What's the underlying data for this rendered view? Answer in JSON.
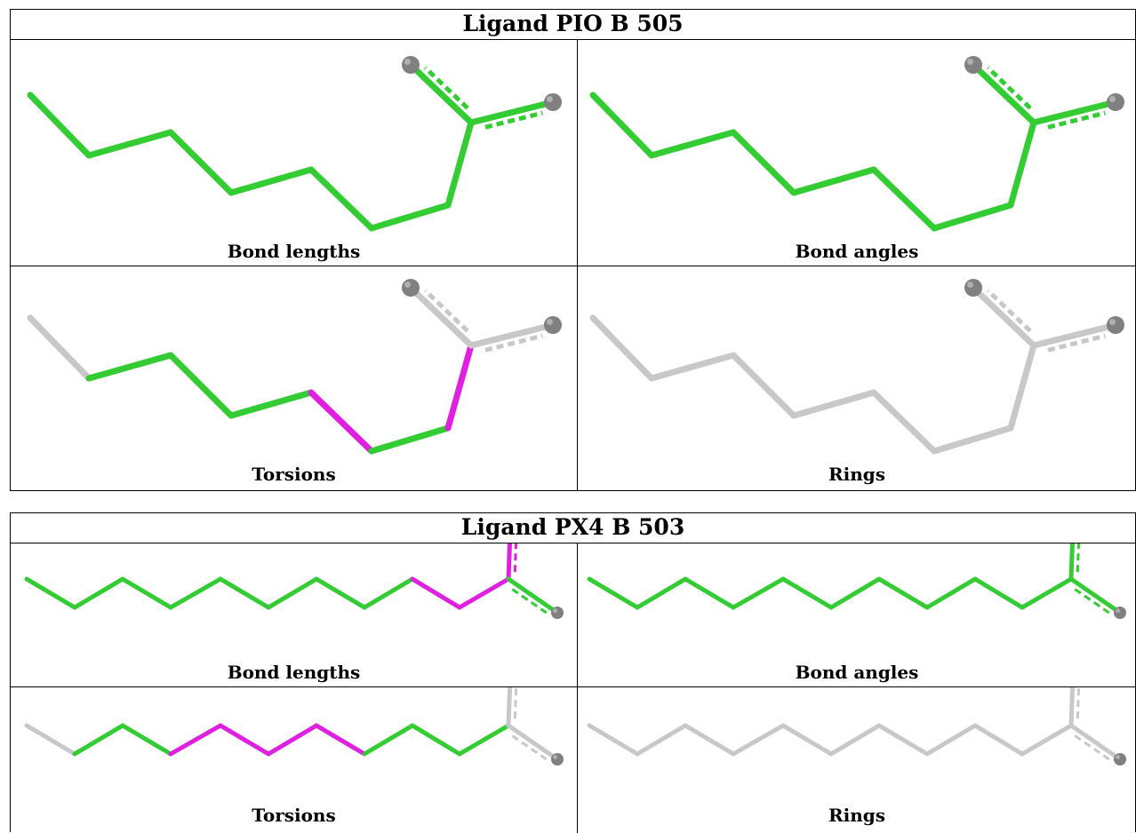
{
  "ligands": [
    {
      "title": "Ligand PIO B 505",
      "panels": [
        {
          "caption": "Bond lengths",
          "chain_colors": [
            "#33cc33",
            "#33cc33",
            "#33cc33",
            "#33cc33",
            "#33cc33",
            "#33cc33",
            "#33cc33",
            "#33cc33"
          ],
          "head_colors": [
            "#33cc33",
            "#33cc33"
          ]
        },
        {
          "caption": "Bond angles",
          "chain_colors": [
            "#33cc33",
            "#33cc33",
            "#33cc33",
            "#33cc33",
            "#33cc33",
            "#33cc33",
            "#33cc33",
            "#33cc33"
          ],
          "head_colors": [
            "#33cc33",
            "#33cc33"
          ]
        },
        {
          "caption": "Torsions",
          "chain_colors": [
            "#c8c8c8",
            "#33cc33",
            "#33cc33",
            "#33cc33",
            "#e020e0",
            "#33cc33",
            "#e020e0",
            "#c8c8c8"
          ],
          "head_colors": [
            "#c8c8c8",
            "#c8c8c8"
          ]
        },
        {
          "caption": "Rings",
          "chain_colors": [
            "#c8c8c8",
            "#c8c8c8",
            "#c8c8c8",
            "#c8c8c8",
            "#c8c8c8",
            "#c8c8c8",
            "#c8c8c8",
            "#c8c8c8"
          ],
          "head_colors": [
            "#c8c8c8",
            "#c8c8c8"
          ]
        }
      ]
    },
    {
      "title": "Ligand PX4 B 503",
      "panels": [
        {
          "caption": "Bond lengths",
          "chain_colors": [
            "#33cc33",
            "#33cc33",
            "#33cc33",
            "#33cc33",
            "#33cc33",
            "#33cc33",
            "#33cc33",
            "#33cc33",
            "#e020e0",
            "#e020e0",
            "#e020e0"
          ],
          "head_colors": [
            "#e020e0",
            "#33cc33"
          ]
        },
        {
          "caption": "Bond angles",
          "chain_colors": [
            "#33cc33",
            "#33cc33",
            "#33cc33",
            "#33cc33",
            "#33cc33",
            "#33cc33",
            "#33cc33",
            "#33cc33",
            "#33cc33",
            "#33cc33",
            "#33cc33"
          ],
          "head_colors": [
            "#33cc33",
            "#33cc33"
          ]
        },
        {
          "caption": "Torsions",
          "chain_colors": [
            "#c8c8c8",
            "#33cc33",
            "#33cc33",
            "#e020e0",
            "#e020e0",
            "#e020e0",
            "#e020e0",
            "#33cc33",
            "#33cc33",
            "#33cc33",
            "#e020e0"
          ],
          "head_colors": [
            "#c8c8c8",
            "#c8c8c8"
          ]
        },
        {
          "caption": "Rings",
          "chain_colors": [
            "#c8c8c8",
            "#c8c8c8",
            "#c8c8c8",
            "#c8c8c8",
            "#c8c8c8",
            "#c8c8c8",
            "#c8c8c8",
            "#c8c8c8",
            "#c8c8c8",
            "#c8c8c8",
            "#c8c8c8"
          ],
          "head_colors": [
            "#c8c8c8",
            "#c8c8c8"
          ]
        }
      ]
    }
  ],
  "atom_color": "#808080"
}
